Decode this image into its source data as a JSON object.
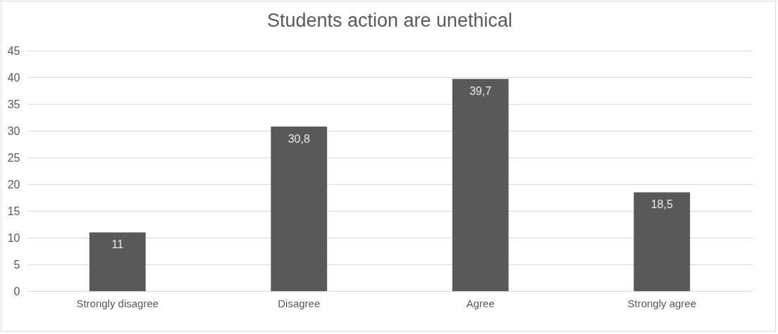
{
  "chart_data": {
    "type": "bar",
    "title": "Students action are unethical",
    "categories": [
      "Strongly disagree",
      "Disagree",
      "Agree",
      "Strongly agree"
    ],
    "values": [
      11,
      30.8,
      39.7,
      18.5
    ],
    "value_labels": [
      "11",
      "30,8",
      "39,7",
      "18,5"
    ],
    "color": "#595959",
    "ylim": [
      0,
      45
    ],
    "yticks": [
      0,
      5,
      10,
      15,
      20,
      25,
      30,
      35,
      40,
      45
    ],
    "grid": "y"
  }
}
